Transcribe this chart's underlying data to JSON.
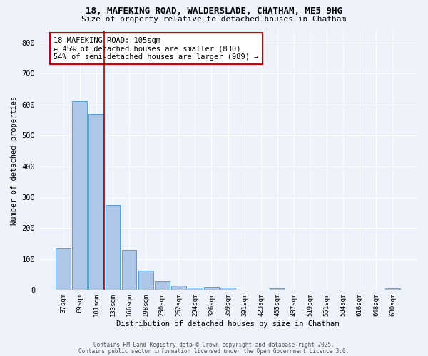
{
  "title": "18, MAFEKING ROAD, WALDERSLADE, CHATHAM, ME5 9HG",
  "subtitle": "Size of property relative to detached houses in Chatham",
  "xlabel": "Distribution of detached houses by size in Chatham",
  "ylabel": "Number of detached properties",
  "categories": [
    "37sqm",
    "69sqm",
    "101sqm",
    "133sqm",
    "166sqm",
    "198sqm",
    "230sqm",
    "262sqm",
    "294sqm",
    "326sqm",
    "359sqm",
    "391sqm",
    "423sqm",
    "455sqm",
    "487sqm",
    "519sqm",
    "551sqm",
    "584sqm",
    "616sqm",
    "648sqm",
    "680sqm"
  ],
  "values": [
    135,
    610,
    570,
    275,
    130,
    62,
    28,
    15,
    8,
    10,
    7,
    0,
    0,
    5,
    0,
    0,
    0,
    0,
    0,
    0,
    6
  ],
  "bar_color": "#aec6e8",
  "bar_edge_color": "#5a9fd4",
  "vline_x": 2.5,
  "vline_color": "#aa0000",
  "annotation_text": "18 MAFEKING ROAD: 105sqm\n← 45% of detached houses are smaller (830)\n54% of semi-detached houses are larger (989) →",
  "annotation_box_color": "#ffffff",
  "annotation_box_edge": "#cc0000",
  "ylim": [
    0,
    840
  ],
  "yticks": [
    0,
    100,
    200,
    300,
    400,
    500,
    600,
    700,
    800
  ],
  "bg_color": "#eef2fb",
  "grid_color": "#ffffff",
  "footer1": "Contains HM Land Registry data © Crown copyright and database right 2025.",
  "footer2": "Contains public sector information licensed under the Open Government Licence 3.0."
}
